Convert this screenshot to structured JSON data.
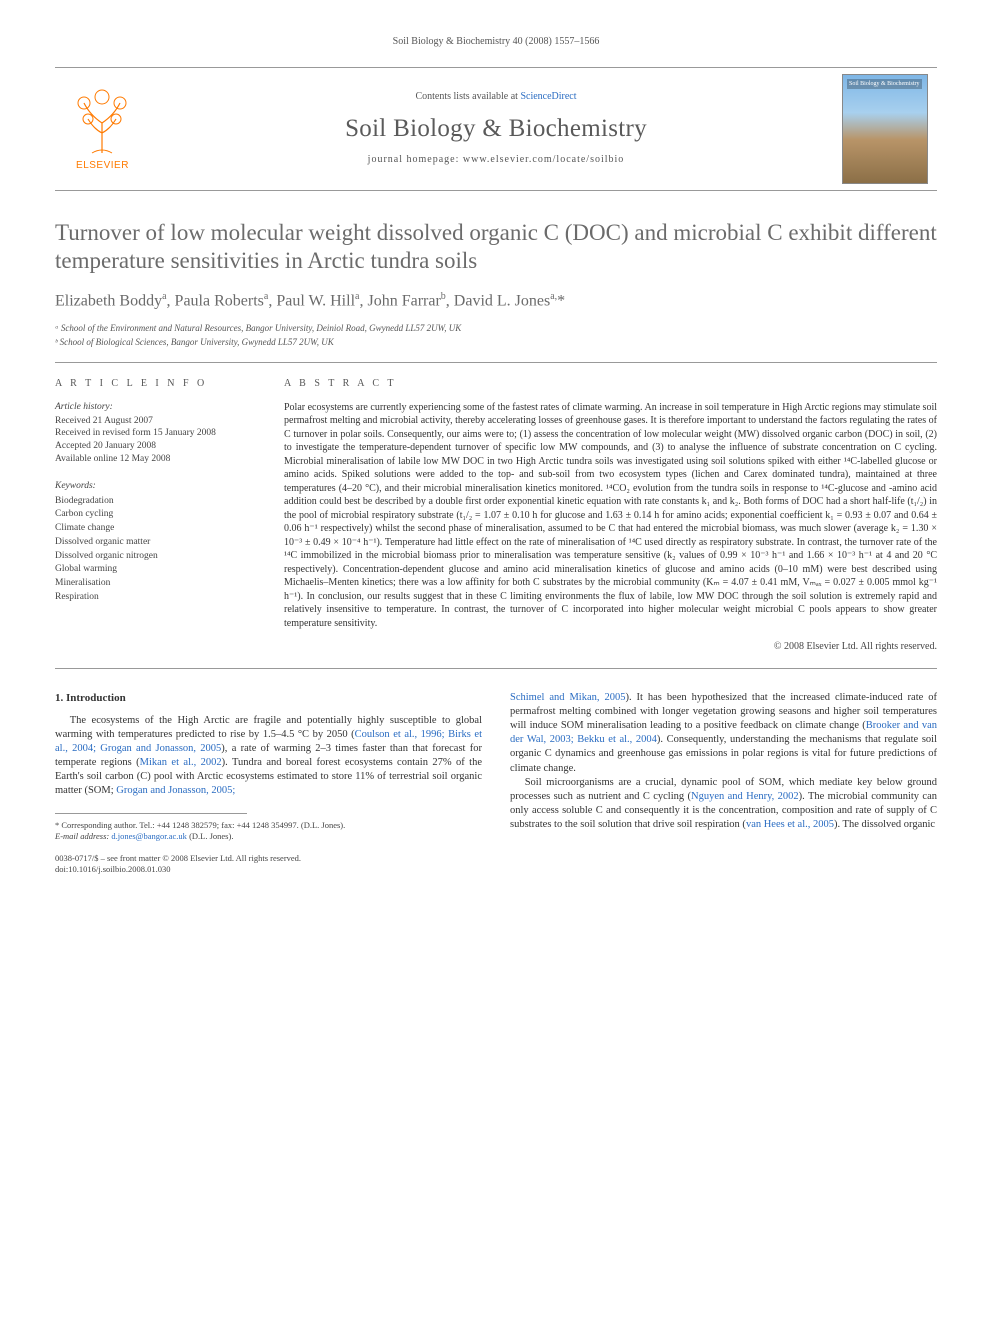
{
  "page": {
    "running_head": "Soil Biology & Biochemistry 40 (2008) 1557–1566",
    "background_color": "#ffffff",
    "text_color": "#333333",
    "link_color": "#2a6cc2"
  },
  "masthead": {
    "publisher_name": "ELSEVIER",
    "publisher_color": "#ff7a00",
    "contents_prefix": "Contents lists available at ",
    "contents_link": "ScienceDirect",
    "journal_name": "Soil Biology & Biochemistry",
    "homepage_prefix": "journal homepage: ",
    "homepage_url": "www.elsevier.com/locate/soilbio",
    "cover_label": "Soil Biology & Biochemistry"
  },
  "article": {
    "title": "Turnover of low molecular weight dissolved organic C (DOC) and microbial C exhibit different temperature sensitivities in Arctic tundra soils",
    "authors_html": "Elizabeth Boddy<sup>a</sup>, Paula Roberts<sup>a</sup>, Paul W. Hill<sup>a</sup>, John Farrar<sup>b</sup>, David L. Jones<sup>a,</sup>*",
    "affiliations": [
      "ᵃ School of the Environment and Natural Resources, Bangor University, Deiniol Road, Gwynedd LL57 2UW, UK",
      "ᵇ School of Biological Sciences, Bangor University, Gwynedd LL57 2UW, UK"
    ]
  },
  "article_info": {
    "label": "A R T I C L E   I N F O",
    "history_heading": "Article history:",
    "history": [
      "Received 21 August 2007",
      "Received in revised form 15 January 2008",
      "Accepted 20 January 2008",
      "Available online 12 May 2008"
    ],
    "keywords_heading": "Keywords:",
    "keywords": [
      "Biodegradation",
      "Carbon cycling",
      "Climate change",
      "Dissolved organic matter",
      "Dissolved organic nitrogen",
      "Global warming",
      "Mineralisation",
      "Respiration"
    ]
  },
  "abstract": {
    "label": "A B S T R A C T",
    "text_parts": [
      "Polar ecosystems are currently experiencing some of the fastest rates of climate warming. An increase in soil temperature in High Arctic regions may stimulate soil permafrost melting and microbial activity, thereby accelerating losses of greenhouse gases. It is therefore important to understand the factors regulating the rates of C turnover in polar soils. Consequently, our aims were to; (1) assess the concentration of low molecular weight (MW) dissolved organic carbon (DOC) in soil, (2) to investigate the temperature-dependent turnover of specific low MW compounds, and (3) to analyse the influence of substrate concentration on C cycling. Microbial mineralisation of labile low MW DOC in two High Arctic tundra soils was investigated using soil solutions spiked with either ",
      "¹⁴C-labelled glucose or amino acids. Spiked solutions were added to the top- and sub-soil from two ecosystem types (lichen and Carex dominated tundra), maintained at three temperatures (4–20 °C), and their microbial mineralisation kinetics monitored. ",
      "¹⁴CO₂ evolution from the tundra soils in response to ¹⁴C-glucose and -amino acid addition could best be described by a double first order exponential kinetic equation with rate constants k₁ and k₂. Both forms of DOC had a short half-life (t₁/₂) in the pool of microbial respiratory substrate (t₁/₂ = 1.07 ± 0.10 h for glucose and 1.63 ± 0.14 h for amino acids; exponential coefficient k₁ = 0.93 ± 0.07 and 0.64 ± 0.06 h⁻¹ respectively) whilst the second phase of mineralisation, assumed to be C that had entered the microbial biomass, was much slower (average k₂ = 1.30 × 10⁻³ ± 0.49 × 10⁻⁴ h⁻¹). Temperature had little effect on the rate of mineralisation of ¹⁴C used directly as respiratory substrate. In contrast, the turnover rate of the ¹⁴C immobilized in the microbial biomass prior to mineralisation was temperature sensitive (k₂ values of 0.99 × 10⁻³ h⁻¹ and 1.66 × 10⁻³ h⁻¹ at 4 and 20 °C respectively). Concentration-dependent glucose and amino acid mineralisation kinetics of glucose and amino acids (0–10 mM) were best described using Michaelis–Menten kinetics; there was a low affinity for both C substrates by the microbial community (Kₘ = 4.07 ± 0.41 mM, Vₘₐₓ = 0.027 ± 0.005 mmol kg⁻¹ h⁻¹). In conclusion, our results suggest that in these C limiting environments the flux of labile, low MW DOC through the soil solution is extremely rapid and relatively insensitive to temperature. In contrast, the turnover of C incorporated into higher molecular weight microbial C pools appears to show greater temperature sensitivity."
    ],
    "copyright": "© 2008 Elsevier Ltd. All rights reserved."
  },
  "body": {
    "intro_heading": "1. Introduction",
    "col1_p1_a": "The ecosystems of the High Arctic are fragile and potentially highly susceptible to global warming with temperatures predicted to rise by 1.5–4.5 °C by 2050 (",
    "col1_p1_ref1": "Coulson et al., 1996; Birks et al., 2004; Grogan and Jonasson, 2005",
    "col1_p1_b": "), a rate of warming 2–3 times faster than that forecast for temperate regions (",
    "col1_p1_ref2": "Mikan et al., 2002",
    "col1_p1_c": "). Tundra and boreal forest ecosystems contain 27% of the Earth's soil carbon (C) pool with Arctic ecosystems estimated to store 11% of terrestrial soil organic matter (SOM; ",
    "col1_p1_ref3": "Grogan and Jonasson, 2005;",
    "col2_p1_ref1": "Schimel and Mikan, 2005",
    "col2_p1_a": "). It has been hypothesized that the increased climate-induced rate of permafrost melting combined with longer vegetation growing seasons and higher soil temperatures will induce SOM mineralisation leading to a positive feedback on climate change (",
    "col2_p1_ref2": "Brooker and van der Wal, 2003; Bekku et al., 2004",
    "col2_p1_b": "). Consequently, understanding the mechanisms that regulate soil organic C dynamics and greenhouse gas emissions in polar regions is vital for future predictions of climate change.",
    "col2_p2_a": "Soil microorganisms are a crucial, dynamic pool of SOM, which mediate key below ground processes such as nutrient and C cycling (",
    "col2_p2_ref1": "Nguyen and Henry, 2002",
    "col2_p2_b": "). The microbial community can only access soluble C and consequently it is the concentration, composition and rate of supply of C substrates to the soil solution that drive soil respiration (",
    "col2_p2_ref2": "van Hees et al., 2005",
    "col2_p2_c": "). The dissolved organic"
  },
  "footnotes": {
    "corresponding": "* Corresponding author. Tel.: +44 1248 382579; fax: +44 1248 354997. (D.L. Jones).",
    "email_label": "E-mail address: ",
    "email": "d.jones@bangor.ac.uk",
    "email_suffix": " (D.L. Jones)."
  },
  "doi": {
    "line1": "0038-0717/$ – see front matter © 2008 Elsevier Ltd. All rights reserved.",
    "line2": "doi:10.1016/j.soilbio.2008.01.030"
  }
}
